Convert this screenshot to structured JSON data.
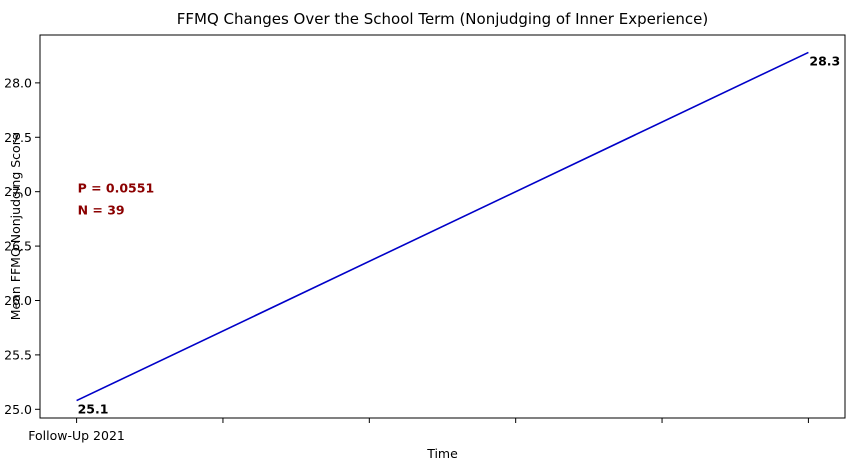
{
  "chart_data": {
    "type": "line",
    "title": "FFMQ Changes Over the School Term (Nonjudging of Inner Experience)",
    "xlabel": "Time",
    "ylabel": "Mean FFMQ Nonjudging Score",
    "categories": [
      "Follow-Up 2021",
      "",
      "",
      "",
      "",
      ""
    ],
    "series": [
      {
        "x": [
          0,
          5
        ],
        "values": [
          25.08,
          28.28
        ],
        "data_labels": [
          "25.1",
          "28.3"
        ],
        "color": "#0000c8"
      }
    ],
    "ylim": [
      24.92,
      28.44
    ],
    "xlim": [
      -0.25,
      5.25
    ],
    "yticks": [
      25.0,
      25.5,
      26.0,
      26.5,
      27.0,
      27.5,
      28.0
    ],
    "ytick_labels": [
      "25.0",
      "25.5",
      "26.0",
      "26.5",
      "27.0",
      "27.5",
      "28.0"
    ],
    "grid": false,
    "annotations": [
      {
        "text": "P = 0.0551",
        "x": 0,
        "y": 27.0,
        "color": "#8b0000"
      },
      {
        "text": "N =  39",
        "x": 0,
        "y": 26.8,
        "color": "#8b0000"
      }
    ]
  }
}
